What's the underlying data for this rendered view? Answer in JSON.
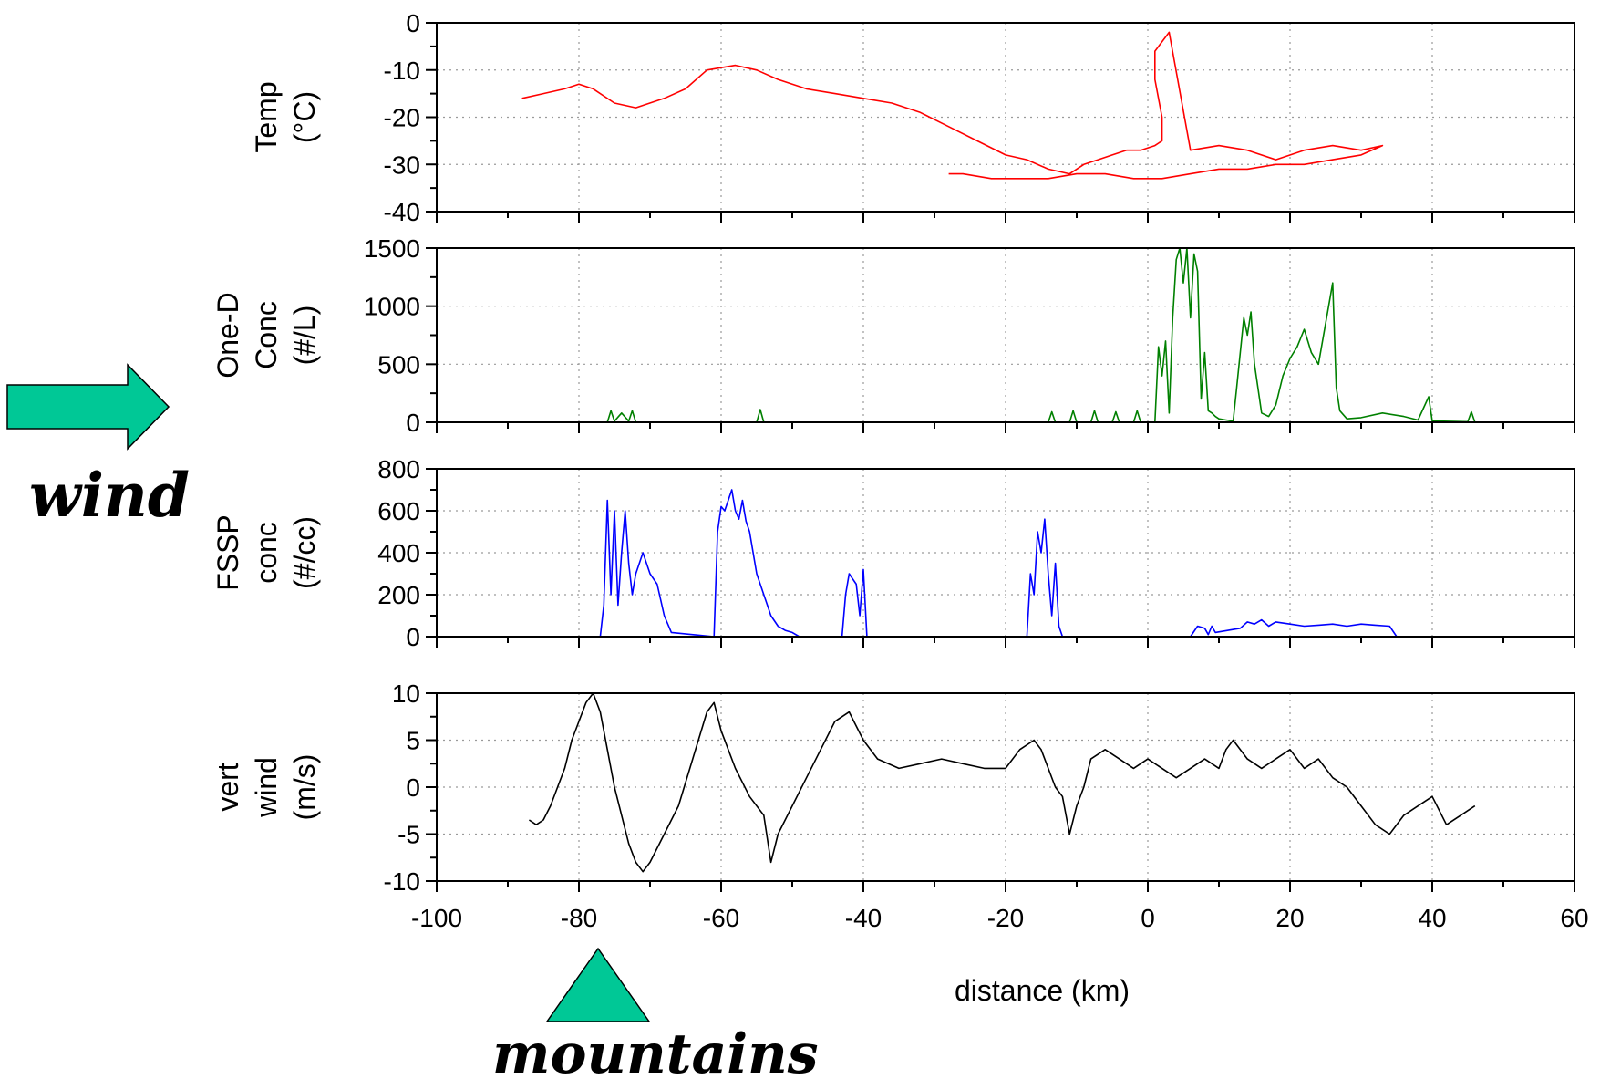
{
  "chart_data": {
    "type": "line",
    "xlabel": "distance (km)",
    "xlim": [
      -100,
      60
    ],
    "x_ticks": [
      -100,
      -80,
      -60,
      -40,
      -20,
      0,
      20,
      40,
      60
    ],
    "grid": true,
    "panels": [
      {
        "ylabel_lines": [
          "Temp",
          "(°C)"
        ],
        "ylim": [
          -40,
          0
        ],
        "y_ticks": [
          0,
          -10,
          -20,
          -30,
          -40
        ],
        "color": "#ff0000",
        "x": [
          -88,
          -85,
          -82,
          -80,
          -78,
          -75,
          -72,
          -68,
          -65,
          -62,
          -58,
          -55,
          -52,
          -48,
          -44,
          -40,
          -36,
          -32,
          -28,
          -24,
          -20,
          -17,
          -14,
          -11,
          -9,
          -7,
          -5,
          -3,
          -1,
          1,
          2,
          2,
          1,
          1,
          3,
          6,
          10,
          14,
          18,
          22,
          26,
          30,
          33,
          30,
          26,
          22,
          18,
          14,
          10,
          6,
          2,
          -2,
          -6,
          -10,
          -14,
          -18,
          -22,
          -26,
          -28
        ],
        "y": [
          -16,
          -15,
          -14,
          -13,
          -14,
          -17,
          -18,
          -16,
          -14,
          -10,
          -9,
          -10,
          -12,
          -14,
          -15,
          -16,
          -17,
          -19,
          -22,
          -25,
          -28,
          -29,
          -31,
          -32,
          -30,
          -29,
          -28,
          -27,
          -27,
          -26,
          -25,
          -20,
          -12,
          -6,
          -2,
          -27,
          -26,
          -27,
          -29,
          -27,
          -26,
          -27,
          -26,
          -28,
          -29,
          -30,
          -30,
          -31,
          -31,
          -32,
          -33,
          -33,
          -32,
          -32,
          -33,
          -33,
          -33,
          -32,
          -32
        ]
      },
      {
        "ylabel_lines": [
          "One-D",
          "Conc",
          "(#/L)"
        ],
        "ylim": [
          0,
          1500
        ],
        "y_ticks": [
          1500,
          1000,
          500,
          0
        ],
        "color": "#008000",
        "x": [
          -87,
          -76,
          -75.5,
          -75,
          -74,
          -73,
          -72.5,
          -72,
          -60,
          -55,
          -54.5,
          -54,
          -14,
          -13.5,
          -13,
          -11,
          -10.5,
          -10,
          -8,
          -7.5,
          -7,
          -5,
          -4.5,
          -4,
          -2,
          -1.5,
          -1,
          1,
          1.5,
          2,
          2.5,
          3,
          3.5,
          4,
          4.5,
          5,
          5.5,
          6,
          6.5,
          7,
          7.5,
          8,
          8.5,
          9,
          9.5,
          10,
          11,
          12,
          12.5,
          13,
          13.5,
          14,
          14.5,
          15,
          16,
          17,
          18,
          19,
          20,
          21,
          22,
          23,
          24,
          25,
          26,
          26.5,
          27,
          28,
          30,
          33,
          36,
          38,
          39.5,
          40,
          41,
          45,
          45.5,
          46
        ],
        "y": [
          0,
          0,
          100,
          10,
          80,
          10,
          100,
          0,
          0,
          0,
          110,
          0,
          0,
          90,
          0,
          0,
          100,
          0,
          0,
          100,
          0,
          0,
          90,
          0,
          0,
          100,
          0,
          0,
          650,
          400,
          700,
          80,
          900,
          1400,
          1500,
          1200,
          1500,
          900,
          1450,
          1300,
          200,
          600,
          100,
          80,
          50,
          30,
          20,
          10,
          300,
          600,
          900,
          750,
          950,
          500,
          80,
          50,
          150,
          400,
          550,
          650,
          800,
          600,
          500,
          850,
          1200,
          300,
          100,
          30,
          40,
          80,
          50,
          20,
          220,
          10,
          10,
          5,
          90,
          0
        ]
      },
      {
        "ylabel_lines": [
          "FSSP",
          "conc",
          "(#/cc)"
        ],
        "ylim": [
          0,
          800
        ],
        "y_ticks": [
          800,
          600,
          400,
          200,
          0
        ],
        "color": "#0000ff",
        "x": [
          -87,
          -77,
          -76.5,
          -76,
          -75.5,
          -75,
          -74.5,
          -74,
          -73.5,
          -73,
          -72.5,
          -72,
          -71,
          -70,
          -69,
          -68,
          -67,
          -61,
          -60.5,
          -60,
          -59.5,
          -59,
          -58.5,
          -58,
          -57.5,
          -57,
          -56.5,
          -56,
          -55.5,
          -55,
          -54,
          -53,
          -52,
          -51,
          -50,
          -49,
          -43,
          -42.5,
          -42,
          -41,
          -40.5,
          -40,
          -39.5,
          -17,
          -16.5,
          -16,
          -15.5,
          -15,
          -14.5,
          -14,
          -13.5,
          -13,
          -12.5,
          -12,
          6,
          7,
          8,
          8.5,
          9,
          9.5,
          13,
          14,
          15,
          16,
          17,
          18,
          20,
          22,
          24,
          26,
          28,
          30,
          32,
          34,
          35,
          46
        ],
        "y": [
          0,
          0,
          150,
          650,
          200,
          600,
          150,
          400,
          600,
          350,
          200,
          300,
          400,
          300,
          250,
          100,
          20,
          0,
          500,
          620,
          600,
          650,
          700,
          600,
          560,
          650,
          550,
          500,
          400,
          300,
          200,
          100,
          50,
          30,
          20,
          0,
          0,
          200,
          300,
          250,
          100,
          320,
          0,
          0,
          300,
          200,
          500,
          400,
          560,
          300,
          100,
          350,
          50,
          0,
          0,
          50,
          40,
          10,
          50,
          20,
          40,
          70,
          60,
          80,
          50,
          70,
          60,
          50,
          55,
          60,
          50,
          60,
          55,
          50,
          0,
          0
        ]
      },
      {
        "ylabel_lines": [
          "vert",
          "wind",
          "(m/s)"
        ],
        "ylim": [
          -10,
          10
        ],
        "y_ticks": [
          10,
          5,
          0,
          -5,
          -10
        ],
        "color": "#000000",
        "x": [
          -87,
          -86,
          -85,
          -84,
          -83,
          -82,
          -81,
          -80,
          -79,
          -78,
          -77,
          -76,
          -75,
          -74,
          -73,
          -72,
          -71,
          -70,
          -68,
          -66,
          -64,
          -62,
          -61,
          -60,
          -58,
          -56,
          -54,
          -53,
          -52,
          -50,
          -48,
          -46,
          -44,
          -42,
          -40,
          -38,
          -35,
          -32,
          -29,
          -26,
          -23,
          -20,
          -18,
          -16,
          -15,
          -14,
          -13,
          -12,
          -11,
          -10,
          -9,
          -8,
          -6,
          -4,
          -2,
          0,
          2,
          4,
          6,
          8,
          10,
          11,
          12,
          14,
          16,
          18,
          20,
          22,
          24,
          26,
          28,
          30,
          32,
          34,
          36,
          38,
          40,
          42,
          44,
          46
        ],
        "y": [
          -3.5,
          -4,
          -3.5,
          -2,
          0,
          2,
          5,
          7,
          9,
          10,
          8,
          4,
          0,
          -3,
          -6,
          -8,
          -9,
          -8,
          -5,
          -2,
          3,
          8,
          9,
          6,
          2,
          -1,
          -3,
          -8,
          -5,
          -2,
          1,
          4,
          7,
          8,
          5,
          3,
          2,
          2.5,
          3,
          2.5,
          2,
          2,
          4,
          5,
          4,
          2,
          0,
          -1,
          -5,
          -2,
          0,
          3,
          4,
          3,
          2,
          3,
          2,
          1,
          2,
          3,
          2,
          4,
          5,
          3,
          2,
          3,
          4,
          2,
          3,
          1,
          0,
          -2,
          -4,
          -5,
          -3,
          -2,
          -1,
          -4,
          -3,
          -2
        ]
      }
    ],
    "annotations": {
      "wind_label": "wind",
      "mountains_label": "mountains",
      "arrow_color": "#00c896",
      "triangle_color": "#00c896"
    }
  }
}
